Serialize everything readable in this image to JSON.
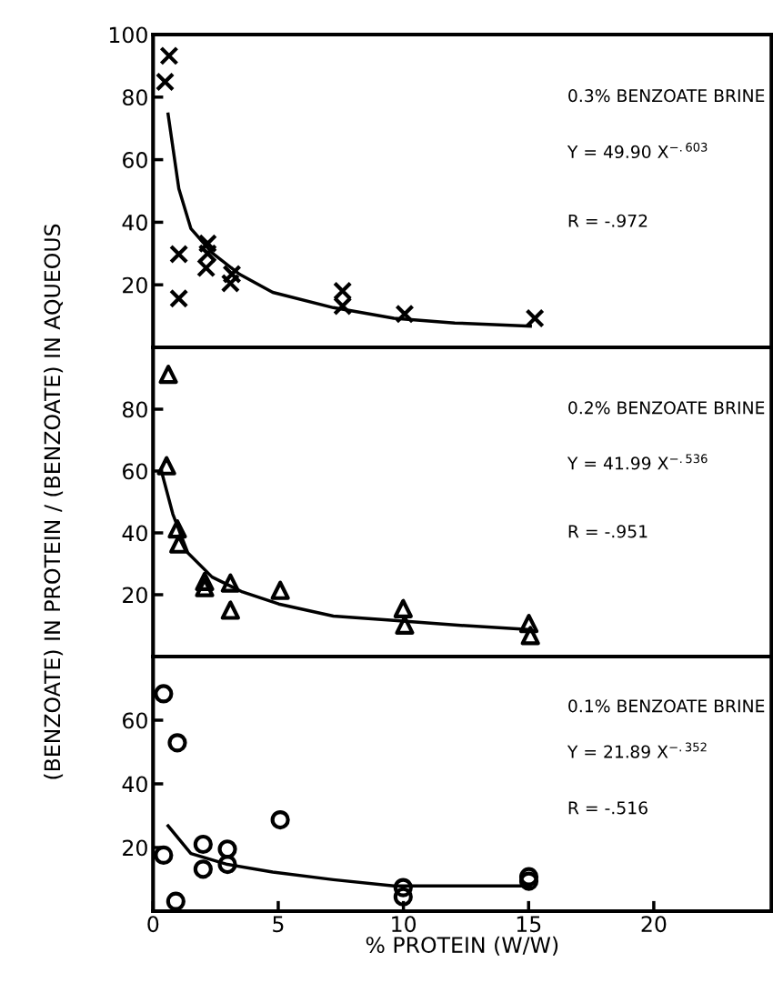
{
  "chart_data": [
    {
      "type": "scatter",
      "xlim": [
        0,
        24.7
      ],
      "ylim": [
        0,
        100
      ],
      "yticks": [
        20,
        40,
        60,
        80,
        100
      ],
      "tick_labels": "y",
      "grid": false,
      "legend": false,
      "annotations": [
        "0.3% BENZOATE BRINE",
        "Y = 49.90 X$^{−.603}$",
        "R = -.972"
      ],
      "series": [
        {
          "marker": "cross",
          "color": "#000000",
          "x": [
            0.64,
            0.48,
            1.03,
            1.03,
            2.18,
            2.12,
            2.18,
            3.09,
            3.15,
            7.57,
            7.57,
            10.05,
            15.25
          ],
          "values": [
            93.2,
            84.9,
            29.8,
            15.6,
            33.2,
            25.4,
            30,
            20.5,
            23.4,
            18.0,
            13.2,
            10.7,
            9.3
          ]
        },
        {
          "type": "line",
          "marker": "none",
          "line_style": "solid",
          "color": "#000000",
          "x": [
            0.6,
            1.03,
            1.51,
            2.36,
            3.45,
            4.78,
            7.2,
            9.62,
            12.05,
            15.07
          ],
          "values": [
            74.6,
            50.7,
            38,
            30.2,
            23.4,
            17.6,
            12.7,
            9.3,
            7.8,
            6.8
          ]
        }
      ]
    },
    {
      "type": "scatter",
      "xlim": [
        0,
        24.7
      ],
      "ylim": [
        0,
        100
      ],
      "yticks": [
        20,
        40,
        60,
        80
      ],
      "tick_labels": "y",
      "grid": false,
      "legend": false,
      "ylabel": "(BENZOATE) IN PROTEIN / (BENZOATE) IN AQUEOUS",
      "annotations": [
        "0.2% BENZOATE BRINE",
        "Y = 41.99 X$^{−.536}$",
        "R = -.951"
      ],
      "series": [
        {
          "marker": "triangle",
          "color": "#000000",
          "x": [
            0.61,
            0.54,
            0.97,
            1.03,
            2.06,
            2.06,
            3.09,
            3.09,
            5.08,
            9.99,
            10.05,
            15.01,
            15.07
          ],
          "values": [
            91.3,
            61.7,
            41.3,
            36.4,
            24.3,
            22.3,
            23.8,
            15,
            21.4,
            15.5,
            10.2,
            10.7,
            6.8
          ]
        },
        {
          "type": "line",
          "marker": "none",
          "line_style": "solid",
          "color": "#000000",
          "x": [
            0.36,
            0.79,
            1.39,
            2.36,
            3.57,
            5.02,
            7.2,
            9.62,
            12.05,
            15.07
          ],
          "values": [
            59.2,
            46.1,
            33.5,
            25.7,
            20.9,
            17,
            13.1,
            11.7,
            10.2,
            8.7
          ]
        }
      ]
    },
    {
      "type": "scatter",
      "xlim": [
        0,
        24.7
      ],
      "ylim": [
        0,
        80
      ],
      "xticks": [
        0,
        5,
        10,
        15,
        20
      ],
      "yticks": [
        20,
        40,
        60
      ],
      "grid": false,
      "legend": false,
      "xlabel": "% PROTEIN (W/W)",
      "annotations": [
        "0.1% BENZOATE BRINE",
        "Y = 21.89 X$^{−.352}$",
        "R = -.516"
      ],
      "series": [
        {
          "marker": "circle",
          "color": "#000000",
          "x": [
            0.42,
            0.97,
            0.42,
            0.91,
            2.0,
            2.0,
            2.97,
            2.97,
            5.08,
            9.99,
            9.99,
            15.01,
            15.01
          ],
          "values": [
            68.3,
            52.9,
            17.6,
            3.1,
            21,
            13.2,
            19.5,
            14.7,
            28.7,
            7.4,
            4.5,
            10.8,
            9.4
          ]
        },
        {
          "type": "line",
          "marker": "none",
          "line_style": "solid",
          "color": "#000000",
          "x": [
            0.6,
            1.51,
            2.97,
            4.78,
            7.2,
            9.62,
            12.05,
            15.07
          ],
          "values": [
            26.8,
            18.1,
            14.7,
            12.3,
            9.9,
            7.9,
            7.9,
            7.9
          ]
        }
      ]
    }
  ]
}
